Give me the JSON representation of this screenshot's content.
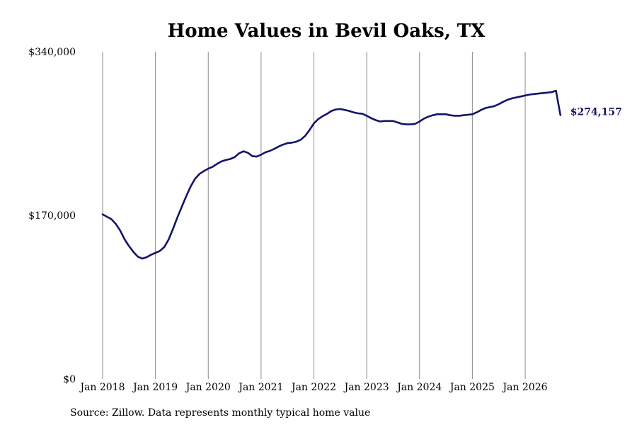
{
  "chart_data": {
    "type": "line",
    "title": "Home Values in Bevil Oaks, TX",
    "xlabel": "",
    "ylabel": "",
    "ylim": [
      0,
      340000
    ],
    "y_ticks": [
      0,
      170000,
      340000
    ],
    "y_tick_labels": [
      "$0",
      "$170,000",
      "$340,000"
    ],
    "x_tick_labels": [
      "Jan 2018",
      "Jan 2019",
      "Jan 2020",
      "Jan 2021",
      "Jan 2022",
      "Jan 2023",
      "Jan 2024",
      "Jan 2025",
      "Jan 2026"
    ],
    "x_tick_dates": [
      "2018-01",
      "2019-01",
      "2020-01",
      "2021-01",
      "2022-01",
      "2023-01",
      "2024-01",
      "2025-01",
      "2026-01"
    ],
    "grid": "vertical",
    "line_color": "#14146b",
    "end_label": "$274,157",
    "series": [
      {
        "x": [
          "2018-01",
          "2018-02",
          "2018-03",
          "2018-04",
          "2018-05",
          "2018-06",
          "2018-07",
          "2018-08",
          "2018-09",
          "2018-10",
          "2018-11",
          "2018-12",
          "2019-01",
          "2019-02",
          "2019-03",
          "2019-04",
          "2019-05",
          "2019-06",
          "2019-07",
          "2019-08",
          "2019-09",
          "2019-10",
          "2019-11",
          "2019-12",
          "2020-01",
          "2020-02",
          "2020-03",
          "2020-04",
          "2020-05",
          "2020-06",
          "2020-07",
          "2020-08",
          "2020-09",
          "2020-10",
          "2020-11",
          "2020-12",
          "2021-01",
          "2021-02",
          "2021-03",
          "2021-04",
          "2021-05",
          "2021-06",
          "2021-07",
          "2021-08",
          "2021-09",
          "2021-10",
          "2021-11",
          "2021-12",
          "2022-01",
          "2022-02",
          "2022-03",
          "2022-04",
          "2022-05",
          "2022-06",
          "2022-07",
          "2022-08",
          "2022-09",
          "2022-10",
          "2022-11",
          "2022-12",
          "2023-01",
          "2023-02",
          "2023-03",
          "2023-04",
          "2023-05",
          "2023-06",
          "2023-07",
          "2023-08",
          "2023-09",
          "2023-10",
          "2023-11",
          "2023-12",
          "2024-01",
          "2024-02",
          "2024-03",
          "2024-04",
          "2024-05",
          "2024-06",
          "2024-07",
          "2024-08",
          "2024-09",
          "2024-10",
          "2024-11",
          "2024-12",
          "2025-01",
          "2025-02",
          "2025-03",
          "2025-04",
          "2025-05",
          "2025-06",
          "2025-07",
          "2025-08",
          "2025-09",
          "2025-10",
          "2025-11",
          "2025-12",
          "2026-01",
          "2026-02",
          "2026-03",
          "2026-04",
          "2026-05",
          "2026-06",
          "2026-07",
          "2026-08",
          "2026-09"
        ],
        "y": [
          171000,
          168500,
          166000,
          161000,
          154000,
          145000,
          138000,
          132000,
          127000,
          125000,
          126500,
          129000,
          131000,
          133000,
          137000,
          145000,
          156000,
          168000,
          179000,
          190000,
          200000,
          208000,
          213000,
          216000,
          218500,
          220500,
          223500,
          226000,
          227500,
          228500,
          230500,
          234500,
          236500,
          235000,
          231500,
          231000,
          233000,
          235500,
          237000,
          239000,
          241500,
          243500,
          245000,
          245500,
          246500,
          248500,
          252500,
          258500,
          265500,
          270000,
          273000,
          275500,
          278500,
          280000,
          280500,
          279500,
          278500,
          277000,
          276000,
          275500,
          273500,
          271000,
          269000,
          267500,
          268000,
          268000,
          268000,
          266500,
          265000,
          264500,
          264500,
          265000,
          267500,
          270500,
          272500,
          274000,
          275000,
          275000,
          275000,
          274000,
          273500,
          273500,
          274000,
          274500,
          275000,
          277000,
          279500,
          281500,
          282500,
          283500,
          285500,
          288000,
          290000,
          291500,
          292500,
          293500,
          294500,
          295500,
          296000,
          296500,
          297000,
          297500,
          298000,
          299500,
          274157
        ]
      }
    ]
  },
  "source_note": "Source: Zillow. Data represents monthly typical home value"
}
